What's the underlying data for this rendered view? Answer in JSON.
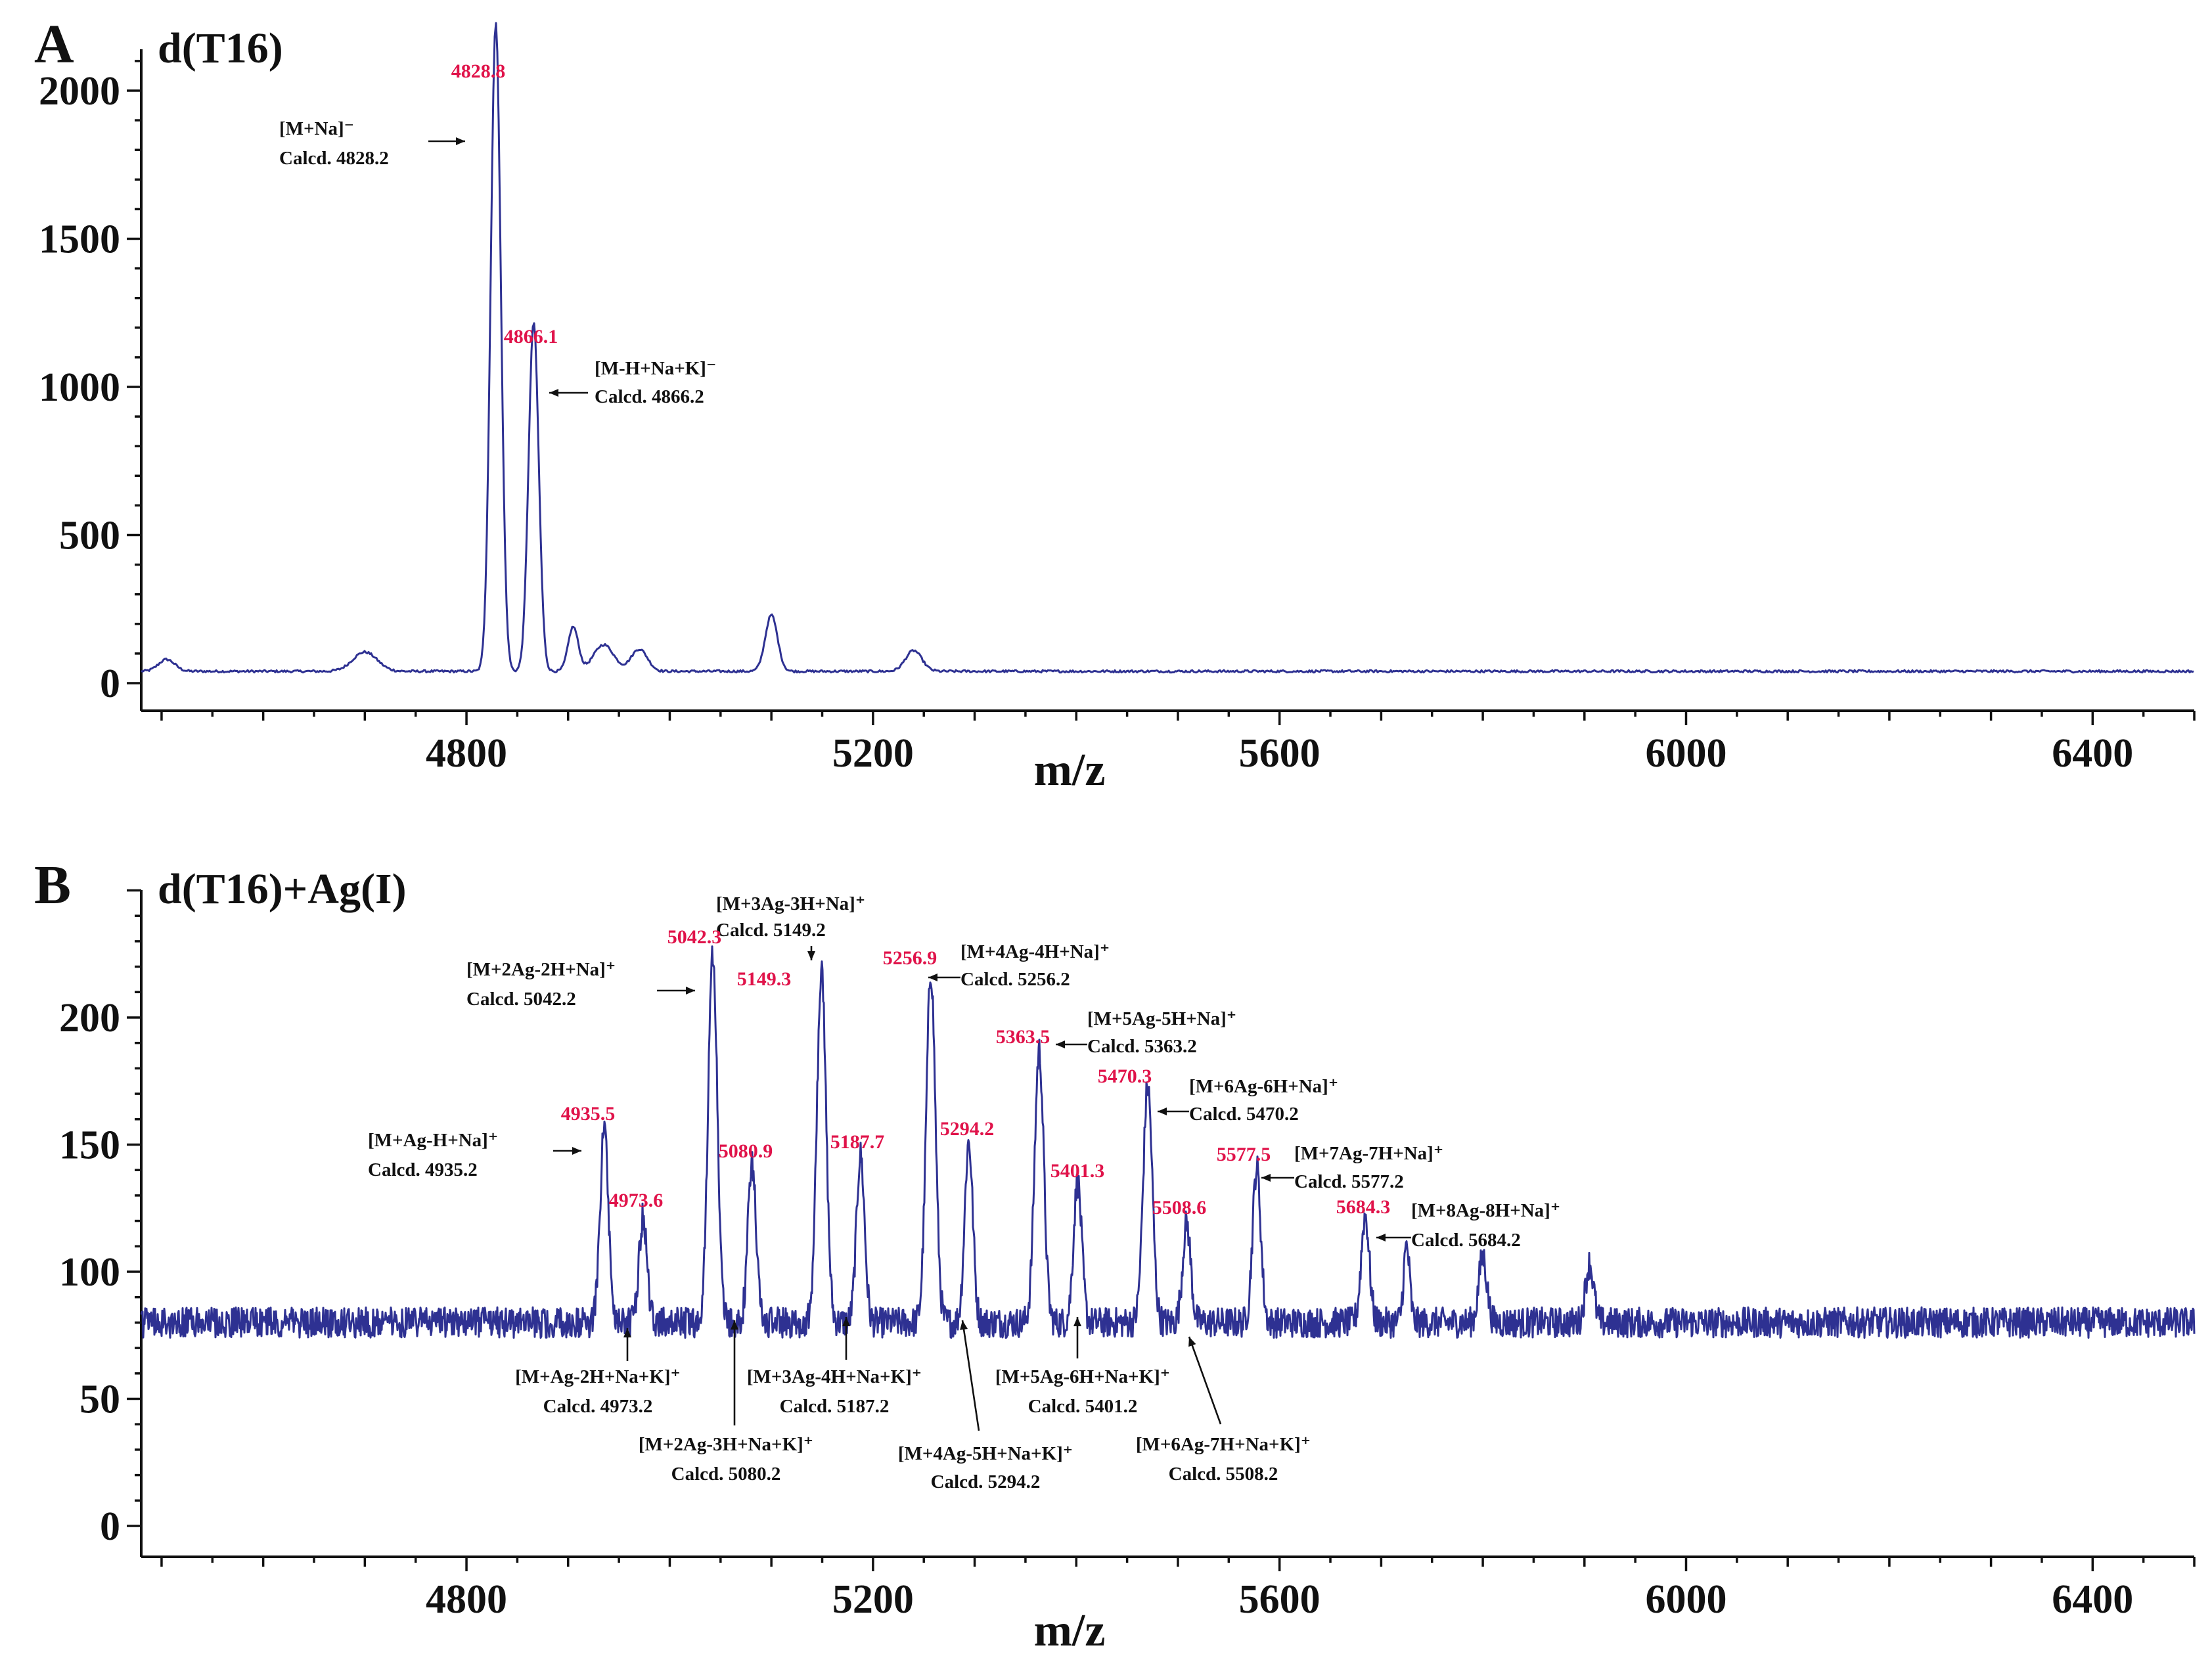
{
  "chart_data": [
    {
      "type": "line",
      "panel": "A",
      "title": "d(T16)",
      "xlabel": "m/z",
      "ylabel": "",
      "xlim": [
        4480,
        6500
      ],
      "ylim": [
        -80,
        2330
      ],
      "xticks": [
        4800,
        5200,
        5600,
        6000,
        6400
      ],
      "yticks": [
        0,
        500,
        1000,
        1500,
        2000
      ],
      "baseline": 40,
      "noise": 4,
      "peaks": [
        {
          "x": 4505,
          "y": 80,
          "w": 8
        },
        {
          "x": 4700,
          "y": 105,
          "w": 12
        },
        {
          "x": 4828.8,
          "y": 2230,
          "w": 5
        },
        {
          "x": 4866.1,
          "y": 1220,
          "w": 5
        },
        {
          "x": 4905,
          "y": 190,
          "w": 5
        },
        {
          "x": 4935,
          "y": 130,
          "w": 10
        },
        {
          "x": 4970,
          "y": 115,
          "w": 8
        },
        {
          "x": 5100,
          "y": 230,
          "w": 6
        },
        {
          "x": 5240,
          "y": 110,
          "w": 8
        }
      ],
      "peak_labels": [
        {
          "x": 4828.8,
          "y": 2230,
          "text": "4828.8"
        },
        {
          "x": 4866.1,
          "y": 1220,
          "text": "4866.1"
        }
      ],
      "annotations": [
        {
          "lines": [
            "[M+Na]⁻",
            "Calcd. 4828.2"
          ],
          "target_x": 4828.8,
          "target_y": 2010
        },
        {
          "lines": [
            "[M-H+Na+K]⁻",
            "Calcd. 4866.2"
          ],
          "target_x": 4866.1,
          "target_y": 1100
        }
      ]
    },
    {
      "type": "line",
      "panel": "B",
      "title": "d(T16)+Ag(I)",
      "xlabel": "m/z",
      "ylabel": "",
      "xlim": [
        4480,
        6500
      ],
      "ylim": [
        -8,
        250
      ],
      "xticks": [
        4800,
        5200,
        5600,
        6000,
        6400
      ],
      "yticks": [
        0,
        50,
        100,
        150,
        200
      ],
      "baseline": 80,
      "noise": 6,
      "peaks": [
        {
          "x": 4935.5,
          "y": 156,
          "w": 4
        },
        {
          "x": 4973.6,
          "y": 121,
          "w": 4
        },
        {
          "x": 5042.3,
          "y": 224,
          "w": 4.5
        },
        {
          "x": 5080.9,
          "y": 142,
          "w": 4
        },
        {
          "x": 5149.3,
          "y": 218,
          "w": 4.5
        },
        {
          "x": 5187.7,
          "y": 146,
          "w": 4
        },
        {
          "x": 5256.9,
          "y": 218,
          "w": 4.5
        },
        {
          "x": 5294.2,
          "y": 151,
          "w": 4
        },
        {
          "x": 5363.5,
          "y": 187,
          "w": 4.5
        },
        {
          "x": 5401.3,
          "y": 135,
          "w": 4
        },
        {
          "x": 5470.3,
          "y": 173,
          "w": 4.5
        },
        {
          "x": 5508.6,
          "y": 119,
          "w": 4
        },
        {
          "x": 5577.5,
          "y": 141,
          "w": 4
        },
        {
          "x": 5684.3,
          "y": 122,
          "w": 4
        },
        {
          "x": 5725,
          "y": 110,
          "w": 3
        },
        {
          "x": 5800,
          "y": 106,
          "w": 4
        },
        {
          "x": 5905,
          "y": 103,
          "w": 4
        }
      ],
      "peak_labels": [
        {
          "x": 4935.5,
          "y": 156,
          "text": "4935.5"
        },
        {
          "x": 4973.6,
          "y": 121,
          "text": "4973.6"
        },
        {
          "x": 5042.3,
          "y": 224,
          "text": "5042.3"
        },
        {
          "x": 5080.9,
          "y": 142,
          "text": "5080.9"
        },
        {
          "x": 5149.3,
          "y": 218,
          "text": "5149.3"
        },
        {
          "x": 5187.7,
          "y": 146,
          "text": "5187.7"
        },
        {
          "x": 5256.9,
          "y": 218,
          "text": "5256.9"
        },
        {
          "x": 5294.2,
          "y": 151,
          "text": "5294.2"
        },
        {
          "x": 5363.5,
          "y": 187,
          "text": "5363.5"
        },
        {
          "x": 5401.3,
          "y": 135,
          "text": "5401.3"
        },
        {
          "x": 5470.3,
          "y": 173,
          "text": "5470.3"
        },
        {
          "x": 5508.6,
          "y": 119,
          "text": "5508.6"
        },
        {
          "x": 5577.5,
          "y": 141,
          "text": "5577.5"
        },
        {
          "x": 5684.3,
          "y": 122,
          "text": "5684.3"
        }
      ],
      "annotations": [
        {
          "lines": [
            "[M+Ag-H+Na]⁺",
            "Calcd. 4935.2"
          ],
          "target_x": 4935.5,
          "target_y": 150
        },
        {
          "lines": [
            "[M+2Ag-2H+Na]⁺",
            "Calcd. 5042.2"
          ],
          "target_x": 5042.3,
          "target_y": 210
        },
        {
          "lines": [
            "[M+3Ag-3H+Na]⁺",
            "Calcd. 5149.2"
          ],
          "target_x": 5149.3,
          "target_y": 220
        },
        {
          "lines": [
            "[M+4Ag-4H+Na]⁺",
            "Calcd. 5256.2"
          ],
          "target_x": 5256.9,
          "target_y": 212
        },
        {
          "lines": [
            "[M+5Ag-5H+Na]⁺",
            "Calcd. 5363.2"
          ],
          "target_x": 5363.5,
          "target_y": 183
        },
        {
          "lines": [
            "[M+6Ag-6H+Na]⁺",
            "Calcd. 5470.2"
          ],
          "target_x": 5470.3,
          "target_y": 166
        },
        {
          "lines": [
            "[M+7Ag-7H+Na]⁺",
            "Calcd. 5577.2"
          ],
          "target_x": 5577.5,
          "target_y": 139
        },
        {
          "lines": [
            "[M+8Ag-8H+Na]⁺",
            "Calcd. 5684.2"
          ],
          "target_x": 5684.3,
          "target_y": 117
        },
        {
          "lines": [
            "[M+Ag-2H+Na+K]⁺",
            "Calcd. 4973.2"
          ],
          "target_x": 4973.6,
          "target_y": 83
        },
        {
          "lines": [
            "[M+2Ag-3H+Na+K]⁺",
            "Calcd. 5080.2"
          ],
          "target_x": 5080.9,
          "target_y": 83
        },
        {
          "lines": [
            "[M+3Ag-4H+Na+K]⁺",
            "Calcd. 5187.2"
          ],
          "target_x": 5187.7,
          "target_y": 83
        },
        {
          "lines": [
            "[M+4Ag-5H+Na+K]⁺",
            "Calcd. 5294.2"
          ],
          "target_x": 5294.2,
          "target_y": 82
        },
        {
          "lines": [
            "[M+5Ag-6H+Na+K]⁺",
            "Calcd. 5401.2"
          ],
          "target_x": 5401.3,
          "target_y": 83
        },
        {
          "lines": [
            "[M+6Ag-7H+Na+K]⁺",
            "Calcd. 5508.2"
          ],
          "target_x": 5508.6,
          "target_y": 82
        }
      ]
    }
  ]
}
